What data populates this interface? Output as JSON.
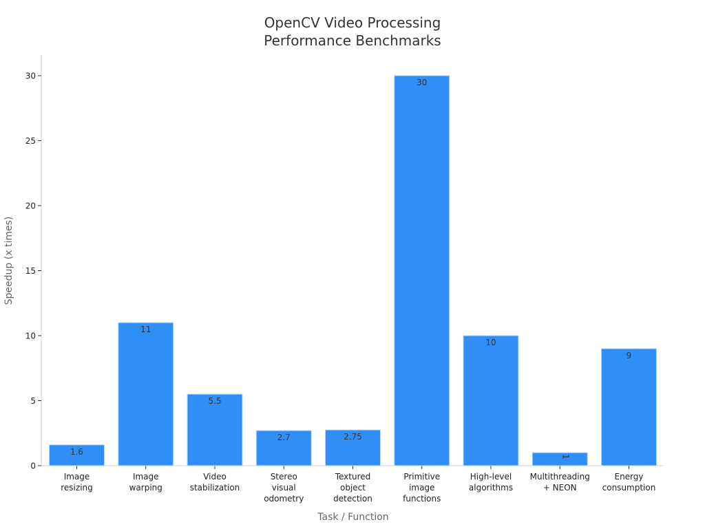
{
  "chart_data": {
    "type": "bar",
    "title_lines": [
      "OpenCV Video Processing",
      "Performance Benchmarks"
    ],
    "xlabel": "Task / Function",
    "ylabel": "Speedup (x times)",
    "ylim": [
      0,
      30
    ],
    "yticks": [
      0,
      5,
      10,
      15,
      20,
      25,
      30
    ],
    "categories": [
      [
        "Image",
        "resizing"
      ],
      [
        "Image",
        "warping"
      ],
      [
        "Video",
        "stabilization"
      ],
      [
        "Stereo",
        "visual",
        "odometry"
      ],
      [
        "Textured",
        "object",
        "detection"
      ],
      [
        "Primitive",
        "image",
        "functions"
      ],
      [
        "High-level",
        "algorithms"
      ],
      [
        "Multithreading",
        "+ NEON"
      ],
      [
        "Energy",
        "consumption"
      ]
    ],
    "values": [
      1.6,
      11,
      5.5,
      2.7,
      2.75,
      30,
      10,
      1,
      9
    ],
    "value_labels": [
      "1.6",
      "11",
      "5.5",
      "2.7",
      "2.75",
      "30",
      "10",
      "1",
      "9"
    ],
    "grid": false,
    "legend": "none",
    "colors": {
      "bar": "#2f8ff7",
      "bar_edge": "#b9d8fb",
      "axis": "#cccccc",
      "tick_text": "#222222",
      "label_text": "#666666",
      "title_text": "#333333",
      "value_label_text": "#333333"
    }
  }
}
